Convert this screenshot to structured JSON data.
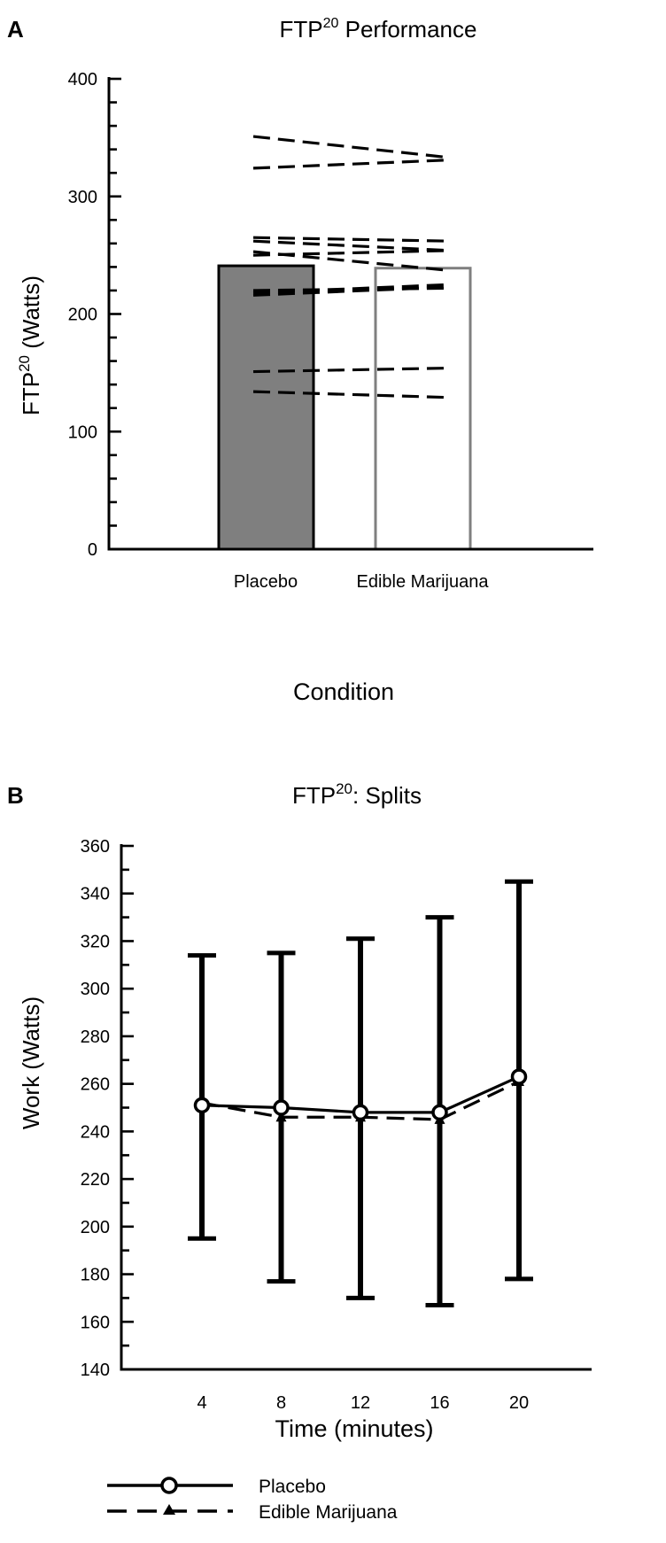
{
  "chart_data": [
    {
      "panel_label": "A",
      "type": "bar",
      "title": "FTP",
      "title_sup": "20",
      "title_rest": " Performance",
      "xlabel": "Condition",
      "ylabel": "FTP",
      "ylabel_sup": "20",
      "ylabel_rest": " (Watts)",
      "ylim": [
        0,
        400
      ],
      "yticks": [
        0,
        100,
        200,
        300,
        400
      ],
      "ytick_labels": [
        "0",
        "100",
        "200",
        "300",
        "400"
      ],
      "categories": [
        "Placebo",
        "Edible Marijuana"
      ],
      "values": [
        241,
        239
      ],
      "bar_colors": [
        "#7f7f7f",
        "#ffffff"
      ],
      "individual_pairs": [
        [
          351,
          333
        ],
        [
          324,
          331
        ],
        [
          265,
          262
        ],
        [
          262,
          254
        ],
        [
          253,
          237
        ],
        [
          250,
          254
        ],
        [
          220,
          222
        ],
        [
          218,
          225
        ],
        [
          216,
          223
        ],
        [
          151,
          154
        ],
        [
          134,
          129
        ]
      ]
    },
    {
      "panel_label": "B",
      "type": "line",
      "title": "FTP",
      "title_sup": "20",
      "title_rest": ": Splits",
      "xlabel": "Time (minutes)",
      "ylabel": "Work (Watts)",
      "ylim": [
        140,
        360
      ],
      "yticks": [
        140,
        160,
        180,
        200,
        220,
        240,
        260,
        280,
        300,
        320,
        340,
        360
      ],
      "ytick_labels": [
        "140",
        "160",
        "180",
        "200",
        "220",
        "240",
        "260",
        "280",
        "300",
        "320",
        "340",
        "360"
      ],
      "x": [
        4,
        8,
        12,
        16,
        20
      ],
      "xtick_labels": [
        "4",
        "8",
        "12",
        "16",
        "20"
      ],
      "error_bars": [
        {
          "low": 195,
          "high": 314
        },
        {
          "low": 177,
          "high": 315
        },
        {
          "low": 170,
          "high": 321
        },
        {
          "low": 167,
          "high": 330
        },
        {
          "low": 178,
          "high": 345
        }
      ],
      "series": [
        {
          "name": "Placebo",
          "values": [
            251,
            250,
            248,
            248,
            263
          ],
          "style": "solid",
          "marker": "circle"
        },
        {
          "name": "Edible Marijuana",
          "values": [
            252,
            246,
            246,
            245,
            261
          ],
          "style": "dashed",
          "marker": "triangle"
        }
      ],
      "legend_position": "bottom-left"
    }
  ]
}
